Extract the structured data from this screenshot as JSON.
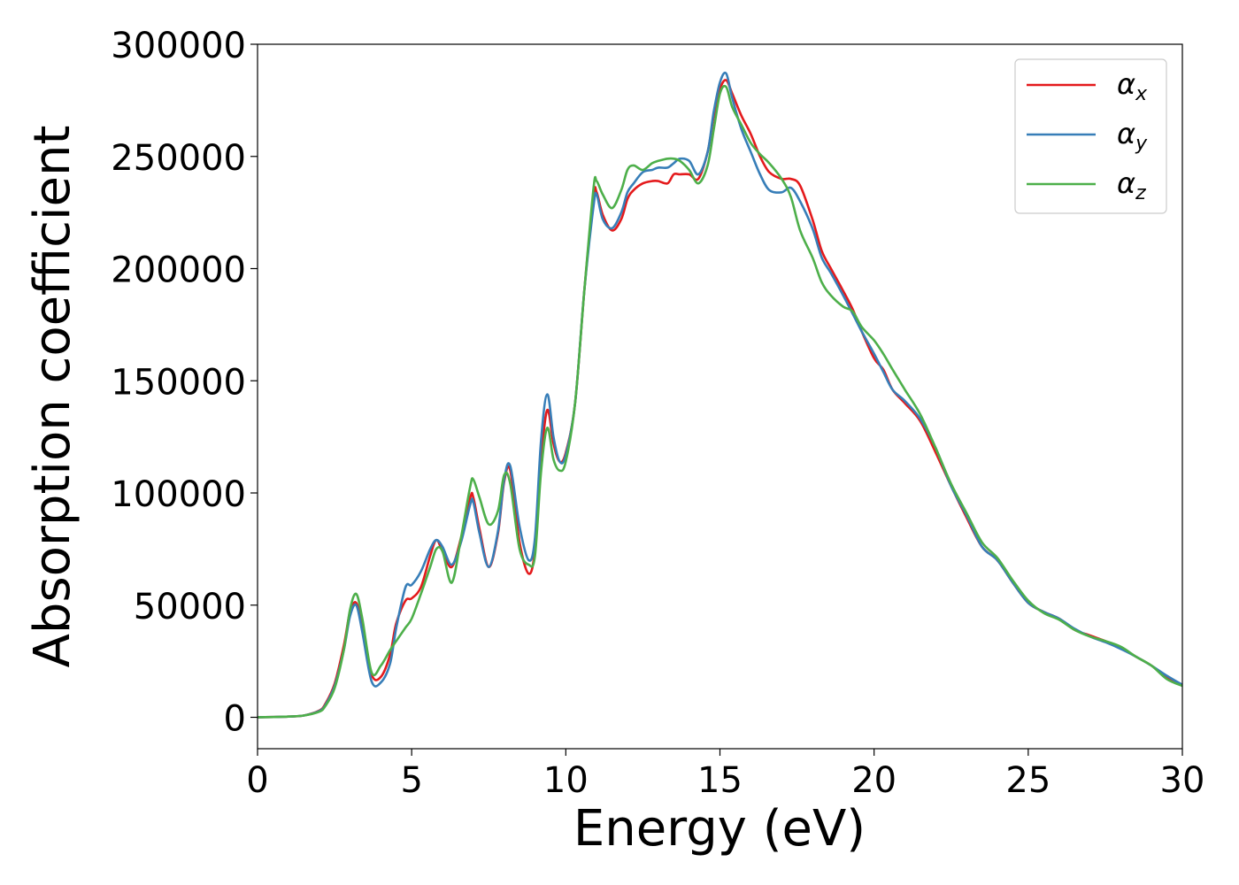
{
  "chart_data": {
    "type": "line",
    "xlabel": "Energy (eV)",
    "ylabel": "Absorption coefficient",
    "xlim": [
      0,
      30
    ],
    "ylim": [
      -14000,
      300000
    ],
    "xticks": [
      0,
      5,
      10,
      15,
      20,
      25,
      30
    ],
    "xtick_labels": [
      "0",
      "5",
      "10",
      "15",
      "20",
      "25",
      "30"
    ],
    "yticks": [
      0,
      50000,
      100000,
      150000,
      200000,
      250000,
      300000
    ],
    "ytick_labels": [
      "0",
      "50000",
      "100000",
      "150000",
      "200000",
      "250000",
      "300000"
    ],
    "grid": false,
    "legend_position": "top-right",
    "x": [
      0,
      1,
      1.5,
      2,
      2.2,
      2.5,
      2.8,
      3.0,
      3.2,
      3.4,
      3.7,
      4.0,
      4.3,
      4.5,
      4.8,
      5.0,
      5.3,
      5.6,
      5.8,
      6.0,
      6.3,
      6.6,
      6.9,
      7.0,
      7.2,
      7.5,
      7.8,
      8.0,
      8.2,
      8.5,
      8.8,
      9.0,
      9.2,
      9.4,
      9.6,
      9.8,
      10.0,
      10.3,
      10.6,
      10.9,
      11.0,
      11.2,
      11.5,
      11.8,
      12.0,
      12.2,
      12.5,
      12.8,
      13.0,
      13.3,
      13.5,
      13.7,
      14.0,
      14.3,
      14.6,
      14.8,
      15.0,
      15.2,
      15.4,
      15.7,
      16.0,
      16.3,
      16.6,
      17.0,
      17.3,
      17.6,
      18.0,
      18.3,
      18.6,
      19.0,
      19.3,
      19.6,
      20.0,
      20.3,
      20.6,
      21.0,
      21.5,
      22.0,
      22.5,
      23.0,
      23.5,
      24.0,
      24.5,
      25.0,
      25.5,
      26.0,
      26.5,
      27.0,
      27.5,
      28.0,
      28.5,
      29.0,
      29.5,
      30.0
    ],
    "series": [
      {
        "name": "αx",
        "color": "#e41a1c",
        "values": [
          0,
          300,
          800,
          3000,
          6000,
          15000,
          32000,
          47000,
          51000,
          40000,
          19000,
          18000,
          28000,
          42000,
          52000,
          53000,
          58000,
          72000,
          79000,
          74000,
          67000,
          80000,
          98000,
          98000,
          84000,
          67000,
          82000,
          105000,
          110000,
          78000,
          64000,
          75000,
          115000,
          137000,
          122000,
          114000,
          118000,
          140000,
          190000,
          232000,
          234000,
          224000,
          217000,
          222000,
          231000,
          235000,
          238000,
          239000,
          239000,
          238000,
          242000,
          242000,
          242000,
          240000,
          252000,
          268000,
          280000,
          284000,
          278000,
          268000,
          260000,
          250000,
          243000,
          240000,
          240000,
          237000,
          222000,
          208000,
          200000,
          190000,
          182000,
          172000,
          160000,
          155000,
          146000,
          140000,
          132000,
          118000,
          103000,
          89000,
          76000,
          70000,
          60000,
          51000,
          47000,
          44000,
          39000,
          36500,
          34000,
          31000,
          27000,
          23000,
          18000,
          14500
        ]
      },
      {
        "name": "αy",
        "color": "#377eb8",
        "values": [
          0,
          300,
          800,
          2800,
          5500,
          14000,
          30000,
          45000,
          50000,
          38000,
          16000,
          15500,
          24000,
          40000,
          58000,
          59000,
          65000,
          75000,
          79000,
          76000,
          68000,
          78000,
          95000,
          96000,
          82000,
          67000,
          83000,
          106000,
          112000,
          85000,
          70000,
          80000,
          124000,
          144000,
          125000,
          114000,
          117000,
          140000,
          190000,
          228000,
          233000,
          222000,
          218000,
          225000,
          234000,
          238000,
          243000,
          244000,
          245000,
          245000,
          247000,
          249000,
          248000,
          242000,
          252000,
          270000,
          283000,
          287000,
          276000,
          262000,
          252000,
          242000,
          235000,
          234000,
          236000,
          230000,
          218000,
          205000,
          198000,
          188000,
          180000,
          172000,
          162000,
          154000,
          146000,
          141000,
          133000,
          120000,
          103000,
          90000,
          76000,
          70000,
          60000,
          51000,
          47000,
          44000,
          39500,
          36000,
          33500,
          30500,
          27000,
          23000,
          18500,
          14500
        ]
      },
      {
        "name": "αz",
        "color": "#4daf4a",
        "values": [
          0,
          300,
          800,
          2500,
          5000,
          13000,
          30000,
          48000,
          55000,
          44000,
          20000,
          23000,
          30000,
          34000,
          40000,
          44000,
          55000,
          67000,
          75000,
          74000,
          60000,
          80000,
          103000,
          106000,
          98000,
          86000,
          92000,
          108000,
          104000,
          75000,
          68000,
          72000,
          110000,
          129000,
          115000,
          110000,
          114000,
          140000,
          190000,
          236000,
          239000,
          233000,
          227000,
          235000,
          244000,
          246000,
          244000,
          247000,
          248000,
          249000,
          249000,
          248000,
          244000,
          238000,
          246000,
          262000,
          278000,
          281000,
          272000,
          264000,
          256000,
          251000,
          247000,
          240000,
          232000,
          217000,
          205000,
          194000,
          188000,
          183000,
          181000,
          174000,
          168000,
          162000,
          155000,
          146000,
          135000,
          120000,
          104000,
          91000,
          78000,
          71000,
          61000,
          52000,
          46500,
          43500,
          39000,
          36000,
          34000,
          31500,
          27000,
          23000,
          17000,
          14000
        ]
      }
    ]
  }
}
